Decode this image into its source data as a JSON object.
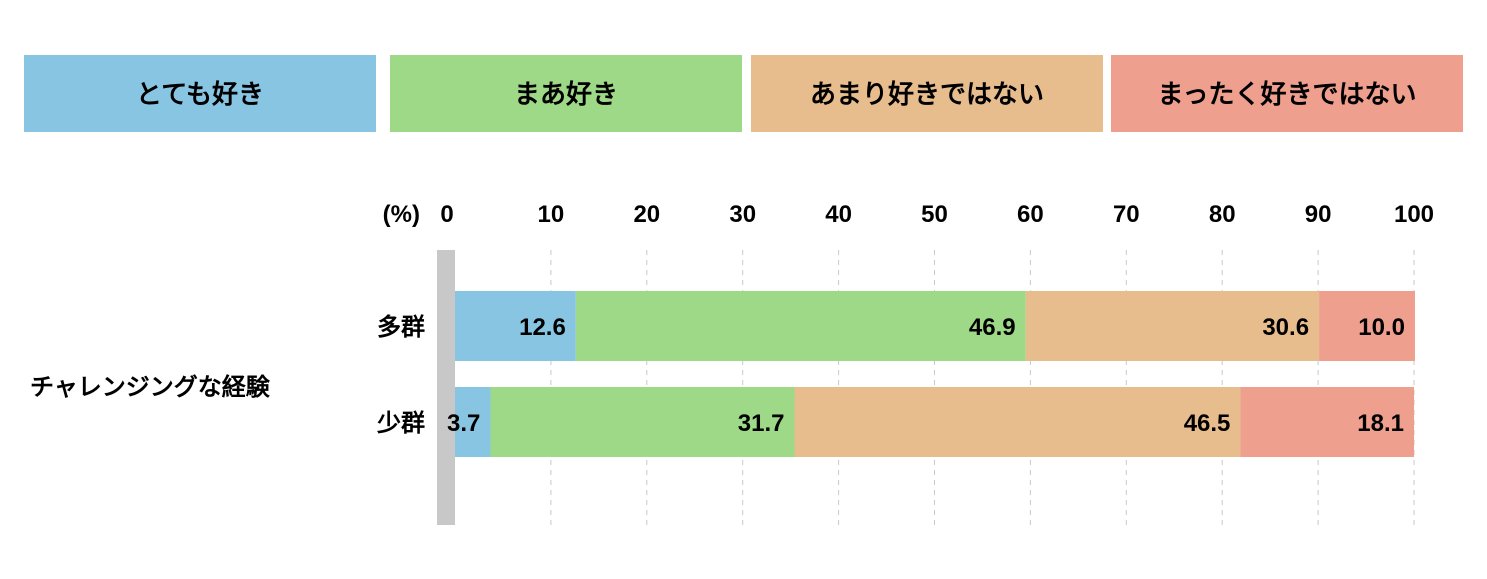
{
  "chart_data": {
    "type": "bar",
    "orientation": "horizontal",
    "stacked": true,
    "legend_position": "top",
    "unit_label": "(%)",
    "xlim": [
      0,
      100
    ],
    "x_ticks": [
      "0",
      "10",
      "20",
      "30",
      "40",
      "50",
      "60",
      "70",
      "80",
      "90",
      "100"
    ],
    "group_label": "チャレンジングな経験",
    "categories": [
      "多群",
      "少群"
    ],
    "series": [
      {
        "name": "とても好き",
        "color": "#88c5e3",
        "values": [
          12.6,
          3.7
        ],
        "labels": [
          "12.6",
          "3.7"
        ]
      },
      {
        "name": "まあ好き",
        "color": "#9dd986",
        "values": [
          46.9,
          31.7
        ],
        "labels": [
          "46.9",
          "31.7"
        ]
      },
      {
        "name": "あまり好きではない",
        "color": "#e8bd8e",
        "values": [
          30.6,
          46.5
        ],
        "labels": [
          "30.6",
          "46.5"
        ]
      },
      {
        "name": "まったく好きではない",
        "color": "#ee9f8e",
        "values": [
          10.0,
          18.1
        ],
        "labels": [
          "10.0",
          "18.1"
        ]
      }
    ],
    "grid": true
  }
}
